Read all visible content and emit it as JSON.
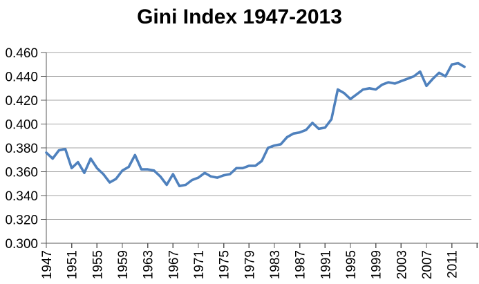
{
  "chart_data": {
    "type": "line",
    "title": "Gini Index 1947-2013",
    "xlabel": "",
    "ylabel": "",
    "legend": "none",
    "grid": "horizontal-only",
    "ylim": [
      0.3,
      0.46
    ],
    "ytick_step": 0.02,
    "ytick_labels": [
      "0.300",
      "0.320",
      "0.340",
      "0.360",
      "0.380",
      "0.400",
      "0.420",
      "0.440",
      "0.460"
    ],
    "yticks": [
      0.3,
      0.32,
      0.34,
      0.36,
      0.38,
      0.4,
      0.42,
      0.44,
      0.46
    ],
    "xtick_labels": [
      "1947",
      "1951",
      "1955",
      "1959",
      "1963",
      "1967",
      "1971",
      "1975",
      "1979",
      "1983",
      "1987",
      "1991",
      "1995",
      "1999",
      "2003",
      "2007",
      "2011"
    ],
    "xtick_interval_years": 4,
    "years": [
      1947,
      1948,
      1949,
      1950,
      1951,
      1952,
      1953,
      1954,
      1955,
      1956,
      1957,
      1958,
      1959,
      1960,
      1961,
      1962,
      1963,
      1964,
      1965,
      1966,
      1967,
      1968,
      1969,
      1970,
      1971,
      1972,
      1973,
      1974,
      1975,
      1976,
      1977,
      1978,
      1979,
      1980,
      1981,
      1982,
      1983,
      1984,
      1985,
      1986,
      1987,
      1988,
      1989,
      1990,
      1991,
      1992,
      1993,
      1994,
      1995,
      1996,
      1997,
      1998,
      1999,
      2000,
      2001,
      2002,
      2003,
      2004,
      2005,
      2006,
      2007,
      2008,
      2009,
      2010,
      2011,
      2012,
      2013
    ],
    "values": [
      0.376,
      0.371,
      0.378,
      0.379,
      0.363,
      0.368,
      0.359,
      0.371,
      0.363,
      0.358,
      0.351,
      0.354,
      0.361,
      0.364,
      0.374,
      0.362,
      0.362,
      0.361,
      0.356,
      0.349,
      0.358,
      0.348,
      0.349,
      0.353,
      0.355,
      0.359,
      0.356,
      0.355,
      0.357,
      0.358,
      0.363,
      0.363,
      0.365,
      0.365,
      0.369,
      0.38,
      0.382,
      0.383,
      0.389,
      0.392,
      0.393,
      0.395,
      0.401,
      0.396,
      0.397,
      0.404,
      0.429,
      0.426,
      0.421,
      0.425,
      0.429,
      0.43,
      0.429,
      0.433,
      0.435,
      0.434,
      0.436,
      0.438,
      0.44,
      0.444,
      0.432,
      0.438,
      0.443,
      0.44,
      0.45,
      0.451,
      0.448
    ],
    "colors": {
      "line": "#4F81BD",
      "gridline": "#A3A3A3",
      "axis": "#595959",
      "text": "#000000",
      "background": "#FFFFFF"
    }
  }
}
